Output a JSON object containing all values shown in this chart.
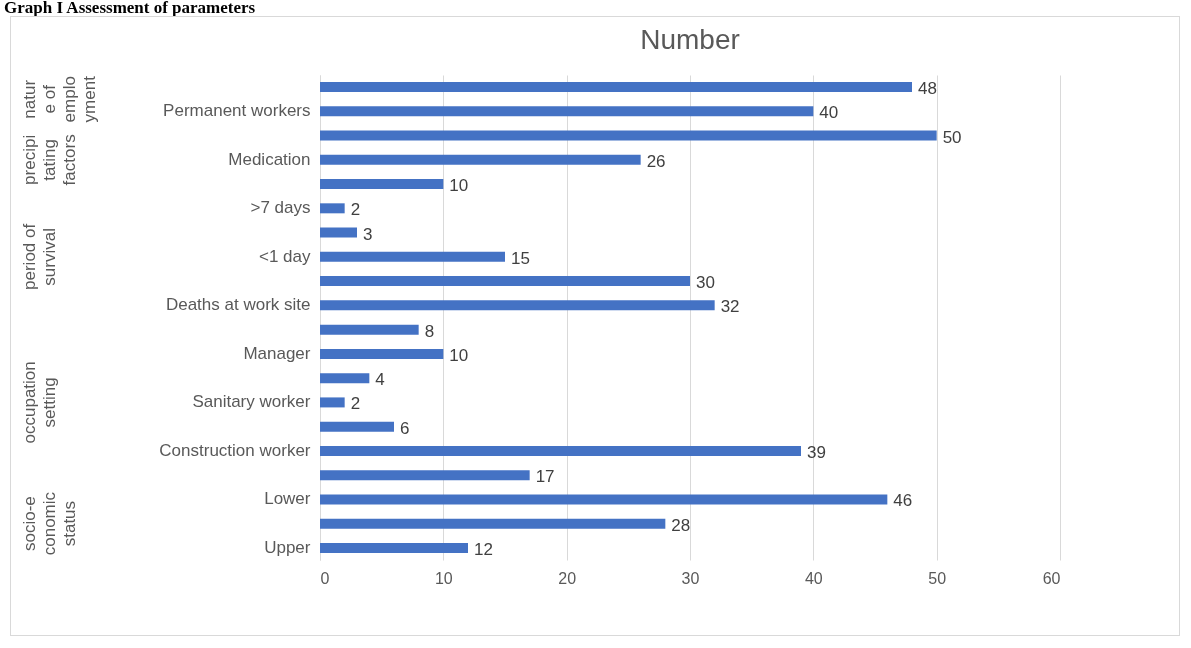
{
  "chart_data": {
    "type": "bar",
    "orientation": "horizontal",
    "title": "Number",
    "categories": [
      null,
      "Permanent workers",
      null,
      "Medication",
      null,
      ">7 days",
      null,
      "<1 day",
      null,
      "Deaths at work site",
      null,
      "Manager",
      null,
      "Sanitary worker",
      null,
      "Construction worker",
      null,
      "Lower",
      null,
      "Upper"
    ],
    "values": [
      48,
      40,
      50,
      26,
      10,
      2,
      3,
      15,
      30,
      32,
      8,
      10,
      4,
      2,
      6,
      39,
      17,
      46,
      28,
      12
    ],
    "color": "#4472c4",
    "xlim": [
      0,
      60
    ],
    "xticks": [
      0,
      10,
      20,
      30,
      40,
      50,
      60
    ],
    "grid": "x",
    "data_labels": true,
    "annotations": [
      "Graph I Assessment of parameters",
      "nature of employment",
      "precipitating factors",
      "period of survival",
      "occupation setting",
      "socio-economic status"
    ]
  }
}
